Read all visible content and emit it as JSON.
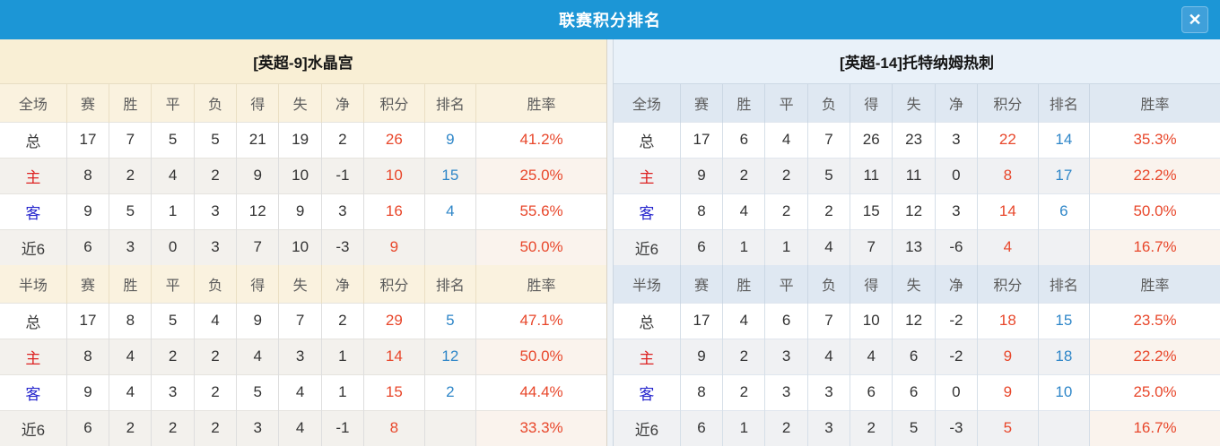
{
  "window": {
    "title": "联赛积分排名",
    "close_glyph": "✕"
  },
  "colors": {
    "titlebar": "#1c96d6",
    "points_text": "#e8472b",
    "rank_text": "#2e86c8",
    "rate_text": "#e8472b",
    "home_label": "#dd2222",
    "away_label": "#2525cd",
    "left_panel_header_bg": "#f9efd5",
    "right_panel_header_bg": "#e9f1f9"
  },
  "columns": {
    "stats": [
      "赛",
      "胜",
      "平",
      "负",
      "得",
      "失",
      "净"
    ],
    "points": "积分",
    "rank": "排名",
    "rate": "胜率"
  },
  "teams": [
    {
      "name": "[英超-9]水晶宫",
      "sections": [
        {
          "scope": "全场",
          "rows": [
            {
              "label": "总",
              "type": "total",
              "stats": [
                "17",
                "7",
                "5",
                "5",
                "21",
                "19",
                "2"
              ],
              "points": "26",
              "rank": "9",
              "rate": "41.2%"
            },
            {
              "label": "主",
              "type": "home",
              "stats": [
                "8",
                "2",
                "4",
                "2",
                "9",
                "10",
                "-1"
              ],
              "points": "10",
              "rank": "15",
              "rate": "25.0%"
            },
            {
              "label": "客",
              "type": "away",
              "stats": [
                "9",
                "5",
                "1",
                "3",
                "12",
                "9",
                "3"
              ],
              "points": "16",
              "rank": "4",
              "rate": "55.6%"
            },
            {
              "label": "近6",
              "type": "recent",
              "stats": [
                "6",
                "3",
                "0",
                "3",
                "7",
                "10",
                "-3"
              ],
              "points": "9",
              "rank": "",
              "rate": "50.0%"
            }
          ]
        },
        {
          "scope": "半场",
          "rows": [
            {
              "label": "总",
              "type": "total",
              "stats": [
                "17",
                "8",
                "5",
                "4",
                "9",
                "7",
                "2"
              ],
              "points": "29",
              "rank": "5",
              "rate": "47.1%"
            },
            {
              "label": "主",
              "type": "home",
              "stats": [
                "8",
                "4",
                "2",
                "2",
                "4",
                "3",
                "1"
              ],
              "points": "14",
              "rank": "12",
              "rate": "50.0%"
            },
            {
              "label": "客",
              "type": "away",
              "stats": [
                "9",
                "4",
                "3",
                "2",
                "5",
                "4",
                "1"
              ],
              "points": "15",
              "rank": "2",
              "rate": "44.4%"
            },
            {
              "label": "近6",
              "type": "recent",
              "stats": [
                "6",
                "2",
                "2",
                "2",
                "3",
                "4",
                "-1"
              ],
              "points": "8",
              "rank": "",
              "rate": "33.3%"
            }
          ]
        }
      ]
    },
    {
      "name": "[英超-14]托特纳姆热刺",
      "sections": [
        {
          "scope": "全场",
          "rows": [
            {
              "label": "总",
              "type": "total",
              "stats": [
                "17",
                "6",
                "4",
                "7",
                "26",
                "23",
                "3"
              ],
              "points": "22",
              "rank": "14",
              "rate": "35.3%"
            },
            {
              "label": "主",
              "type": "home",
              "stats": [
                "9",
                "2",
                "2",
                "5",
                "11",
                "11",
                "0"
              ],
              "points": "8",
              "rank": "17",
              "rate": "22.2%"
            },
            {
              "label": "客",
              "type": "away",
              "stats": [
                "8",
                "4",
                "2",
                "2",
                "15",
                "12",
                "3"
              ],
              "points": "14",
              "rank": "6",
              "rate": "50.0%"
            },
            {
              "label": "近6",
              "type": "recent",
              "stats": [
                "6",
                "1",
                "1",
                "4",
                "7",
                "13",
                "-6"
              ],
              "points": "4",
              "rank": "",
              "rate": "16.7%"
            }
          ]
        },
        {
          "scope": "半场",
          "rows": [
            {
              "label": "总",
              "type": "total",
              "stats": [
                "17",
                "4",
                "6",
                "7",
                "10",
                "12",
                "-2"
              ],
              "points": "18",
              "rank": "15",
              "rate": "23.5%"
            },
            {
              "label": "主",
              "type": "home",
              "stats": [
                "9",
                "2",
                "3",
                "4",
                "4",
                "6",
                "-2"
              ],
              "points": "9",
              "rank": "18",
              "rate": "22.2%"
            },
            {
              "label": "客",
              "type": "away",
              "stats": [
                "8",
                "2",
                "3",
                "3",
                "6",
                "6",
                "0"
              ],
              "points": "9",
              "rank": "10",
              "rate": "25.0%"
            },
            {
              "label": "近6",
              "type": "recent",
              "stats": [
                "6",
                "1",
                "2",
                "3",
                "2",
                "5",
                "-3"
              ],
              "points": "5",
              "rank": "",
              "rate": "16.7%"
            }
          ]
        }
      ]
    }
  ]
}
